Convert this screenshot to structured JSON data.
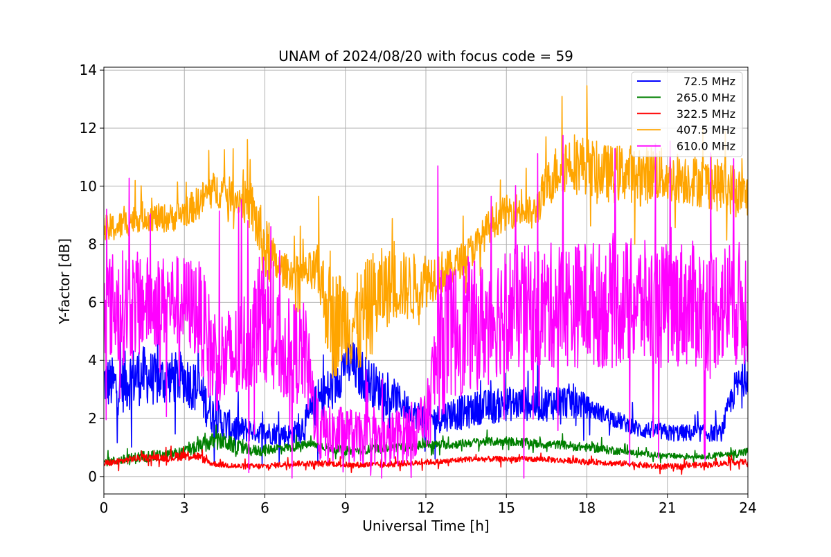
{
  "chart_data": {
    "type": "line",
    "title": "UNAM of 2024/08/20 with focus code = 59",
    "xlabel": "Universal Time [h]",
    "ylabel": "Y-factor [dB]",
    "xlim": [
      0,
      24
    ],
    "ylim": [
      -0.6,
      14.1
    ],
    "xticks": [
      "0",
      "3",
      "6",
      "9",
      "12",
      "15",
      "18",
      "21",
      "24"
    ],
    "yticks": [
      "0",
      "2",
      "4",
      "6",
      "8",
      "10",
      "12",
      "14"
    ],
    "grid": true,
    "legend_position": "top-right",
    "series": [
      {
        "name": "72.5 MHz",
        "color": "#0000ff",
        "x": [
          0,
          0.5,
          1,
          1.5,
          2,
          2.5,
          3,
          3.5,
          4,
          4.5,
          5,
          5.5,
          6,
          6.5,
          7,
          7.5,
          8,
          8.5,
          9,
          9.5,
          10,
          10.5,
          11,
          11.5,
          12,
          12.5,
          13,
          13.5,
          14,
          14.5,
          15,
          15.5,
          16,
          16.5,
          17,
          17.5,
          18,
          18.5,
          19,
          19.5,
          20,
          20.5,
          21,
          21.5,
          22,
          22.5,
          23,
          23.5,
          24
        ],
        "center": [
          3.3,
          3.1,
          3.4,
          3.5,
          3.3,
          3.4,
          3.4,
          3.0,
          2.2,
          1.8,
          1.6,
          1.6,
          1.5,
          1.5,
          1.4,
          1.8,
          2.6,
          3.0,
          4.0,
          3.6,
          3.2,
          2.8,
          2.6,
          2.2,
          2.0,
          2.0,
          2.2,
          2.2,
          2.4,
          2.4,
          2.5,
          2.5,
          2.5,
          2.5,
          2.6,
          2.6,
          2.4,
          2.2,
          2.0,
          1.8,
          1.6,
          1.6,
          1.5,
          1.5,
          1.5,
          1.5,
          1.5,
          3.0,
          3.5
        ],
        "spread": [
          0.9,
          1.0,
          1.1,
          1.0,
          0.9,
          0.9,
          0.9,
          0.9,
          0.7,
          0.6,
          0.5,
          0.4,
          0.4,
          0.4,
          0.4,
          0.6,
          0.8,
          0.9,
          0.9,
          0.9,
          0.8,
          0.7,
          0.6,
          0.5,
          0.5,
          0.5,
          0.6,
          0.6,
          0.6,
          0.6,
          0.6,
          0.6,
          0.6,
          0.6,
          0.6,
          0.6,
          0.4,
          0.3,
          0.3,
          0.3,
          0.3,
          0.3,
          0.3,
          0.3,
          0.3,
          0.3,
          0.3,
          0.6,
          0.6
        ]
      },
      {
        "name": "265.0 MHz",
        "color": "#008000",
        "x": [
          0,
          0.5,
          1,
          1.5,
          2,
          2.5,
          3,
          3.5,
          4,
          4.5,
          5,
          5.5,
          6,
          6.5,
          7,
          7.5,
          8,
          8.5,
          9,
          9.5,
          10,
          10.5,
          11,
          11.5,
          12,
          12.5,
          13,
          13.5,
          14,
          14.5,
          15,
          15.5,
          16,
          16.5,
          17,
          17.5,
          18,
          18.5,
          19,
          19.5,
          20,
          20.5,
          21,
          21.5,
          22,
          22.5,
          23,
          23.5,
          24
        ],
        "center": [
          0.5,
          0.55,
          0.6,
          0.7,
          0.7,
          0.75,
          0.85,
          1.0,
          1.2,
          1.2,
          1.0,
          0.9,
          0.9,
          1.0,
          1.0,
          1.1,
          1.1,
          0.95,
          0.9,
          0.9,
          0.95,
          1.0,
          1.0,
          1.05,
          1.1,
          1.1,
          1.1,
          1.15,
          1.2,
          1.2,
          1.2,
          1.2,
          1.15,
          1.1,
          1.1,
          1.05,
          1.0,
          0.95,
          0.9,
          0.85,
          0.8,
          0.75,
          0.7,
          0.7,
          0.7,
          0.7,
          0.75,
          0.8,
          0.85
        ],
        "spread": [
          0.15,
          0.15,
          0.2,
          0.2,
          0.2,
          0.2,
          0.2,
          0.25,
          0.3,
          0.3,
          0.25,
          0.2,
          0.2,
          0.15,
          0.15,
          0.15,
          0.15,
          0.15,
          0.15,
          0.15,
          0.15,
          0.15,
          0.15,
          0.15,
          0.15,
          0.15,
          0.15,
          0.15,
          0.15,
          0.15,
          0.15,
          0.15,
          0.15,
          0.15,
          0.15,
          0.15,
          0.15,
          0.15,
          0.15,
          0.1,
          0.1,
          0.1,
          0.1,
          0.1,
          0.1,
          0.1,
          0.1,
          0.15,
          0.15
        ]
      },
      {
        "name": "322.5 MHz",
        "color": "#ff0000",
        "x": [
          0,
          0.5,
          1,
          1.5,
          2,
          2.5,
          3,
          3.5,
          4,
          4.5,
          5,
          5.5,
          6,
          6.5,
          7,
          7.5,
          8,
          8.5,
          9,
          9.5,
          10,
          10.5,
          11,
          11.5,
          12,
          12.5,
          13,
          13.5,
          14,
          14.5,
          15,
          15.5,
          16,
          16.5,
          17,
          17.5,
          18,
          18.5,
          19,
          19.5,
          20,
          20.5,
          21,
          21.5,
          22,
          22.5,
          23,
          23.5,
          24
        ],
        "center": [
          0.45,
          0.5,
          0.6,
          0.65,
          0.65,
          0.65,
          0.75,
          0.7,
          0.45,
          0.4,
          0.35,
          0.35,
          0.35,
          0.4,
          0.45,
          0.45,
          0.45,
          0.45,
          0.4,
          0.4,
          0.4,
          0.4,
          0.45,
          0.45,
          0.5,
          0.5,
          0.55,
          0.6,
          0.6,
          0.6,
          0.6,
          0.6,
          0.6,
          0.6,
          0.55,
          0.55,
          0.5,
          0.5,
          0.45,
          0.45,
          0.4,
          0.35,
          0.35,
          0.35,
          0.4,
          0.4,
          0.45,
          0.5,
          0.5
        ],
        "spread": [
          0.12,
          0.12,
          0.12,
          0.12,
          0.12,
          0.15,
          0.18,
          0.15,
          0.1,
          0.1,
          0.1,
          0.1,
          0.1,
          0.1,
          0.1,
          0.1,
          0.1,
          0.1,
          0.1,
          0.1,
          0.1,
          0.1,
          0.1,
          0.1,
          0.1,
          0.1,
          0.1,
          0.1,
          0.1,
          0.1,
          0.1,
          0.1,
          0.1,
          0.1,
          0.1,
          0.1,
          0.1,
          0.1,
          0.1,
          0.1,
          0.1,
          0.1,
          0.1,
          0.1,
          0.1,
          0.1,
          0.1,
          0.1,
          0.1
        ]
      },
      {
        "name": "407.5 MHz",
        "color": "#ffa500",
        "x": [
          0,
          0.5,
          1,
          1.5,
          2,
          2.5,
          3,
          3.5,
          4,
          4.5,
          5,
          5.5,
          6,
          6.5,
          7,
          7.5,
          8,
          8.5,
          9,
          9.5,
          10,
          10.5,
          11,
          11.5,
          12,
          12.5,
          13,
          13.5,
          14,
          14.5,
          15,
          15.5,
          16,
          16.5,
          17,
          17.5,
          18,
          18.5,
          19,
          19.5,
          20,
          20.5,
          21,
          21.5,
          22,
          22.5,
          23,
          23.5,
          24
        ],
        "center": [
          8.5,
          8.6,
          8.8,
          9.0,
          8.9,
          8.9,
          9.1,
          9.4,
          9.9,
          9.8,
          9.6,
          9.3,
          7.8,
          7.2,
          7.0,
          7.0,
          7.0,
          5.2,
          5.5,
          5.2,
          6.0,
          6.5,
          6.6,
          6.5,
          6.8,
          7.0,
          7.2,
          7.6,
          8.1,
          8.8,
          9.1,
          9.2,
          9.0,
          10.0,
          10.7,
          10.9,
          10.7,
          10.5,
          10.4,
          10.5,
          10.3,
          10.5,
          10.3,
          10.3,
          10.2,
          10.1,
          10.0,
          9.9,
          9.6
        ],
        "spread": [
          0.5,
          0.5,
          0.5,
          0.5,
          0.5,
          0.5,
          0.5,
          0.6,
          0.6,
          0.6,
          0.6,
          0.9,
          1.2,
          0.6,
          0.6,
          0.6,
          1.0,
          2.0,
          1.6,
          1.8,
          1.8,
          1.4,
          1.2,
          1.2,
          1.0,
          0.8,
          0.6,
          0.6,
          0.6,
          0.6,
          0.6,
          0.6,
          0.6,
          0.8,
          1.0,
          1.0,
          1.0,
          1.0,
          1.0,
          1.0,
          1.0,
          1.0,
          0.9,
          0.9,
          0.9,
          0.9,
          0.9,
          0.9,
          0.8
        ]
      },
      {
        "name": "610.0 MHz",
        "color": "#ff00ff",
        "x": [
          0,
          0.5,
          1,
          1.5,
          2,
          2.5,
          3,
          3.5,
          4,
          4.5,
          5,
          5.5,
          6,
          6.5,
          7,
          7.5,
          8,
          8.5,
          9,
          9.5,
          10,
          10.5,
          11,
          11.5,
          12,
          12.5,
          13,
          13.5,
          14,
          14.5,
          15,
          15.5,
          16,
          16.5,
          17,
          17.5,
          18,
          18.5,
          19,
          19.5,
          20,
          20.5,
          21,
          21.5,
          22,
          22.5,
          23,
          23.5,
          24
        ],
        "center": [
          6.0,
          5.8,
          5.9,
          6.0,
          6.0,
          6.1,
          6.0,
          5.8,
          4.2,
          4.0,
          4.2,
          5.0,
          5.5,
          4.5,
          4.3,
          4.2,
          1.5,
          1.4,
          1.5,
          1.3,
          1.3,
          1.2,
          1.4,
          1.6,
          1.8,
          4.5,
          5.0,
          5.2,
          5.2,
          5.5,
          5.8,
          5.8,
          5.8,
          5.8,
          6.0,
          5.9,
          6.0,
          5.9,
          5.9,
          6.0,
          6.0,
          5.8,
          5.9,
          6.0,
          5.9,
          5.8,
          5.9,
          6.0,
          5.8
        ],
        "spread": [
          1.8,
          2.0,
          2.0,
          1.6,
          1.6,
          1.6,
          1.6,
          1.8,
          2.0,
          1.8,
          1.8,
          2.0,
          2.2,
          1.8,
          1.8,
          1.8,
          1.0,
          1.0,
          1.0,
          0.9,
          0.9,
          0.9,
          1.0,
          1.0,
          1.0,
          2.6,
          2.4,
          2.4,
          2.2,
          2.2,
          2.2,
          2.2,
          2.2,
          2.2,
          2.2,
          2.2,
          2.2,
          2.2,
          2.2,
          2.2,
          2.2,
          2.2,
          2.2,
          2.2,
          2.2,
          2.2,
          2.2,
          2.2,
          2.2
        ]
      }
    ]
  }
}
